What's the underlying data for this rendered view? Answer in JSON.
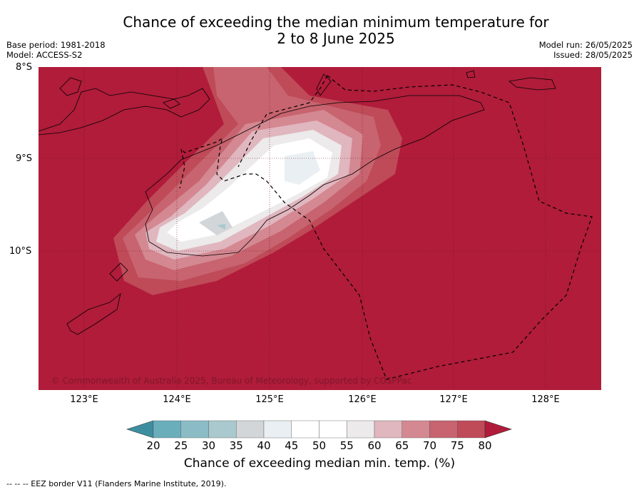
{
  "title_line1": "Chance of exceeding the median minimum temperature for",
  "title_line2": "2 to 8 June 2025",
  "base_period": "Base period: 1981-2018",
  "model": "Model: ACCESS-S2",
  "model_run": "Model run: 26/05/2025",
  "issued": "Issued: 28/05/2025",
  "lat_labels": [
    "8°S",
    "9°S",
    "10°S"
  ],
  "lon_labels": [
    "123°E",
    "124°E",
    "125°E",
    "126°E",
    "127°E",
    "128°E"
  ],
  "copyright": "© Commonwealth of Australia 2025, Bureau of Meteorology, supported by COSPPac",
  "colorbar": {
    "ticks": [
      "20",
      "25",
      "30",
      "35",
      "40",
      "45",
      "50",
      "55",
      "60",
      "65",
      "70",
      "75",
      "80"
    ],
    "colors": [
      "#3d8f9f",
      "#6aaebb",
      "#8bbcc6",
      "#a9c9ce",
      "#d2d6d8",
      "#e9eff2",
      "#ffffff",
      "#ffffff",
      "#eceaea",
      "#e0b6bf",
      "#d48891",
      "#c7646f",
      "#bf4a58",
      "#b01c3a"
    ],
    "label": "Chance of exceeding median min. temp. (%)"
  },
  "footer": "--  --  -- EEZ border V11 (Flanders Marine Institute, 2019)."
}
